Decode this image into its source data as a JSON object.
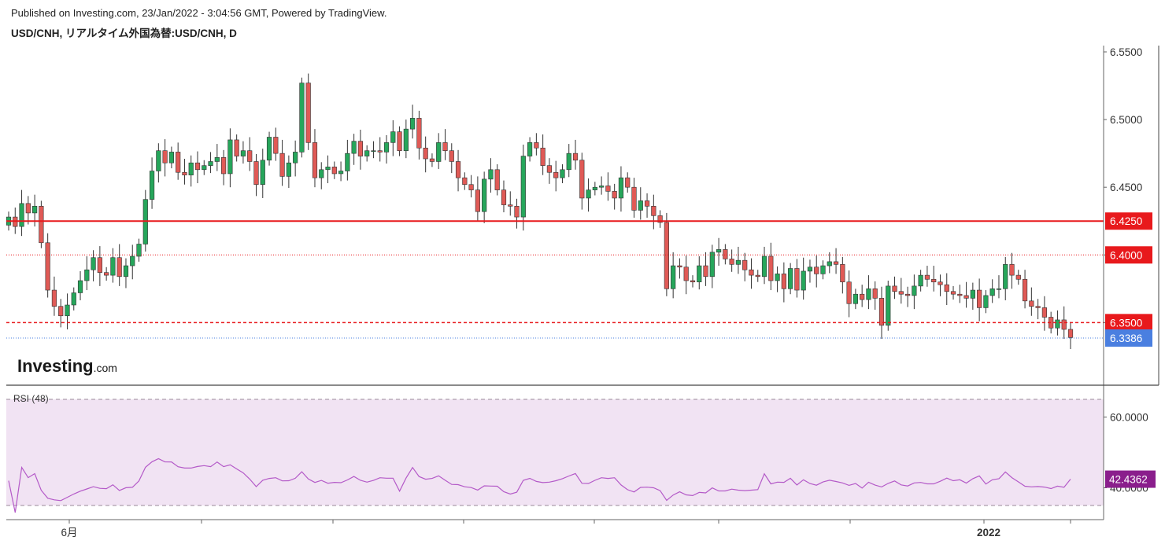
{
  "header": {
    "published": "Published on Investing.com, 23/Jan/2022 - 3:04:56 GMT, Powered by TradingView.",
    "instrument": "USD/CNH, リアルタイム外国為替:USD/CNH, D"
  },
  "logo": {
    "text": "Investing",
    "suffix": ".com"
  },
  "colors": {
    "up": "#26a65b",
    "down": "#e05a56",
    "resistance": "#e8191c",
    "current": "#4a7fe0",
    "rsi_line": "#b45ac8",
    "rsi_fill": "#f1e3f3",
    "rsi_badge": "#8a1e8c"
  },
  "chart_data": [
    {
      "type": "candlestick",
      "title": "USD/CNH, リアルタイム外国為替:USD/CNH, D",
      "x_labels": [
        "6月",
        "2022"
      ],
      "y_ticks": [
        "6.5500",
        "6.5000",
        "6.4500",
        "6.4000",
        "6.3500"
      ],
      "ylim": [
        6.315,
        6.555
      ],
      "levels": [
        {
          "label": "6.4250",
          "value": 6.425,
          "style": "solid"
        },
        {
          "label": "6.4000",
          "value": 6.4,
          "style": "dotted"
        },
        {
          "label": "6.3500",
          "value": 6.35,
          "style": "dashed"
        }
      ],
      "last_price": {
        "label": "6.3386",
        "value": 6.3386
      },
      "close": [
        6.428,
        6.421,
        6.438,
        6.431,
        6.436,
        6.409,
        6.374,
        6.362,
        6.355,
        6.363,
        6.372,
        6.381,
        6.389,
        6.398,
        6.387,
        6.385,
        6.398,
        6.384,
        6.392,
        6.399,
        6.408,
        6.441,
        6.462,
        6.477,
        6.468,
        6.476,
        6.461,
        6.459,
        6.468,
        6.463,
        6.466,
        6.469,
        6.472,
        6.46,
        6.485,
        6.473,
        6.477,
        6.469,
        6.452,
        6.47,
        6.487,
        6.475,
        6.458,
        6.468,
        6.476,
        6.527,
        6.483,
        6.457,
        6.463,
        6.465,
        6.46,
        6.462,
        6.475,
        6.484,
        6.473,
        6.477,
        6.477,
        6.476,
        6.483,
        6.491,
        6.477,
        6.493,
        6.501,
        6.479,
        6.471,
        6.469,
        6.483,
        6.477,
        6.469,
        6.457,
        6.452,
        6.448,
        6.432,
        6.456,
        6.463,
        6.448,
        6.437,
        6.436,
        6.428,
        6.473,
        6.483,
        6.479,
        6.466,
        6.461,
        6.457,
        6.463,
        6.475,
        6.47,
        6.442,
        6.448,
        6.45,
        6.451,
        6.447,
        6.442,
        6.457,
        6.45,
        6.433,
        6.44,
        6.436,
        6.429,
        6.424,
        6.375,
        6.392,
        6.391,
        6.381,
        6.38,
        6.392,
        6.384,
        6.402,
        6.404,
        6.397,
        6.393,
        6.396,
        6.389,
        6.385,
        6.384,
        6.399,
        6.381,
        6.386,
        6.375,
        6.39,
        6.374,
        6.388,
        6.391,
        6.386,
        6.392,
        6.395,
        6.393,
        6.38,
        6.364,
        6.371,
        6.367,
        6.375,
        6.368,
        6.348,
        6.377,
        6.373,
        6.371,
        6.37,
        6.377,
        6.385,
        6.382,
        6.38,
        6.378,
        6.373,
        6.371,
        6.37,
        6.368,
        6.374,
        6.361,
        6.37,
        6.375,
        6.375,
        6.393,
        6.385,
        6.382,
        6.366,
        6.362,
        6.361,
        6.354,
        6.346,
        6.352,
        6.345,
        6.339
      ],
      "rsi": {
        "label": "RSI (48)",
        "ticks": [
          "60.0000",
          "40.0000"
        ],
        "ylim": [
          33.0,
          69.0
        ],
        "bands": [
          65.0,
          35.0
        ],
        "last": {
          "label": "42.4362",
          "value": 42.4362
        }
      }
    }
  ]
}
